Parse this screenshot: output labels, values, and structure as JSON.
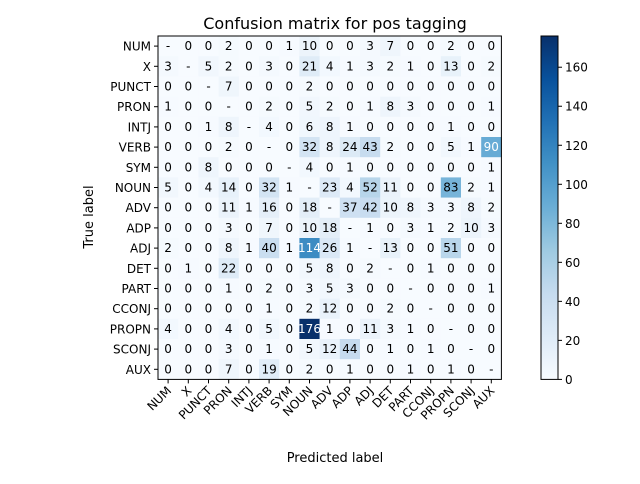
{
  "chart_data": {
    "type": "heatmap",
    "title": "Confusion matrix for pos tagging",
    "xlabel": "Predicted label",
    "ylabel": "True label",
    "labels": [
      "NUM",
      "X",
      "PUNCT",
      "PRON",
      "INTJ",
      "VERB",
      "SYM",
      "NOUN",
      "ADV",
      "ADP",
      "ADJ",
      "DET",
      "PART",
      "CCONJ",
      "PROPN",
      "SCONJ",
      "AUX"
    ],
    "matrix": [
      [
        "-",
        "0",
        "0",
        "2",
        "0",
        "0",
        "1",
        "10",
        "0",
        "0",
        "3",
        "7",
        "0",
        "0",
        "2",
        "0",
        "0"
      ],
      [
        "3",
        "-",
        "5",
        "2",
        "0",
        "3",
        "0",
        "21",
        "4",
        "1",
        "3",
        "2",
        "1",
        "0",
        "13",
        "0",
        "2"
      ],
      [
        "0",
        "0",
        "-",
        "7",
        "0",
        "0",
        "0",
        "2",
        "0",
        "0",
        "0",
        "0",
        "0",
        "0",
        "0",
        "0",
        "0"
      ],
      [
        "1",
        "0",
        "0",
        "-",
        "0",
        "2",
        "0",
        "5",
        "2",
        "0",
        "1",
        "8",
        "3",
        "0",
        "0",
        "0",
        "1"
      ],
      [
        "0",
        "0",
        "1",
        "8",
        "-",
        "4",
        "0",
        "6",
        "8",
        "1",
        "0",
        "0",
        "0",
        "0",
        "1",
        "0",
        "0"
      ],
      [
        "0",
        "0",
        "0",
        "2",
        "0",
        "-",
        "0",
        "32",
        "8",
        "24",
        "43",
        "2",
        "0",
        "0",
        "5",
        "1",
        "90"
      ],
      [
        "0",
        "0",
        "8",
        "0",
        "0",
        "0",
        "-",
        "4",
        "0",
        "1",
        "0",
        "0",
        "0",
        "0",
        "0",
        "0",
        "1"
      ],
      [
        "5",
        "0",
        "4",
        "14",
        "0",
        "32",
        "1",
        "-",
        "23",
        "4",
        "52",
        "11",
        "0",
        "0",
        "83",
        "2",
        "1"
      ],
      [
        "0",
        "0",
        "0",
        "11",
        "1",
        "16",
        "0",
        "18",
        "-",
        "37",
        "42",
        "10",
        "8",
        "3",
        "3",
        "8",
        "2"
      ],
      [
        "0",
        "0",
        "0",
        "3",
        "0",
        "7",
        "0",
        "10",
        "18",
        "-",
        "1",
        "0",
        "3",
        "1",
        "2",
        "10",
        "3"
      ],
      [
        "2",
        "0",
        "0",
        "8",
        "1",
        "40",
        "1",
        "114",
        "26",
        "1",
        "-",
        "13",
        "0",
        "0",
        "51",
        "0",
        "0"
      ],
      [
        "0",
        "1",
        "0",
        "22",
        "0",
        "0",
        "0",
        "5",
        "8",
        "0",
        "2",
        "-",
        "0",
        "1",
        "0",
        "0",
        "0"
      ],
      [
        "0",
        "0",
        "0",
        "1",
        "0",
        "2",
        "0",
        "3",
        "5",
        "3",
        "0",
        "0",
        "-",
        "0",
        "0",
        "0",
        "1"
      ],
      [
        "0",
        "0",
        "0",
        "0",
        "0",
        "1",
        "0",
        "2",
        "12",
        "0",
        "0",
        "2",
        "0",
        "-",
        "0",
        "0",
        "0"
      ],
      [
        "4",
        "0",
        "0",
        "4",
        "0",
        "5",
        "0",
        "176",
        "1",
        "0",
        "11",
        "3",
        "1",
        "0",
        "-",
        "0",
        "0"
      ],
      [
        "0",
        "0",
        "0",
        "3",
        "0",
        "1",
        "0",
        "5",
        "12",
        "44",
        "0",
        "1",
        "0",
        "1",
        "0",
        "-",
        "0"
      ],
      [
        "0",
        "0",
        "0",
        "7",
        "0",
        "19",
        "0",
        "2",
        "0",
        "1",
        "0",
        "0",
        "1",
        "0",
        "1",
        "0",
        "-"
      ]
    ],
    "colorbar": {
      "range": [
        0,
        176
      ],
      "ticks": [
        0,
        20,
        40,
        60,
        80,
        100,
        120,
        140,
        160
      ]
    },
    "colormap": {
      "low": "#f7fbff",
      "high": "#08306b"
    },
    "grid": false
  }
}
